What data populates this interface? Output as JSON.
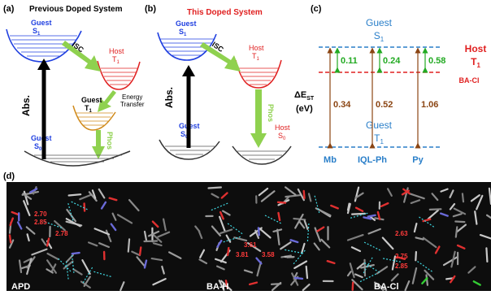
{
  "panel_a": {
    "label": "(a)",
    "title": "Previous Doped System",
    "guest_s1": {
      "line1": "Guest",
      "line2": "S",
      "sub": "1"
    },
    "host_t1": {
      "line1": "Host",
      "line2": "T",
      "sub": "1"
    },
    "guest_t1": {
      "line1": "Guest",
      "line2": "T",
      "sub": "1"
    },
    "guest_s0": {
      "line1": "Guest",
      "line2": "S",
      "sub": "0"
    },
    "isc": "ISC",
    "energy_transfer": {
      "line1": "Energy",
      "line2": "Transfer"
    },
    "abs": "Abs.",
    "phos": "Phos"
  },
  "panel_b": {
    "label": "(b)",
    "title": "This Doped System",
    "guest_s1": {
      "line1": "Guest",
      "line2": "S",
      "sub": "1"
    },
    "host_t1": {
      "line1": "Host",
      "line2": "T",
      "sub": "1"
    },
    "guest_s0": {
      "line1": "Guest",
      "line2": "S",
      "sub": "0"
    },
    "host_s0": {
      "line1": "Host",
      "line2": "S",
      "sub": "0"
    },
    "isc": "ISC",
    "abs": "Abs.",
    "phos": "Phos"
  },
  "panel_c": {
    "label": "(c)",
    "guest_s1": {
      "line1": "Guest",
      "line2": "S",
      "sub": "1"
    },
    "host_t1": {
      "line1": "Host",
      "line2": "T",
      "sub": "1"
    },
    "host_name": "BA-Cl",
    "guest_t1": {
      "line1": "Guest",
      "line2": "T",
      "sub": "1"
    },
    "delta_est": {
      "main": "ΔE",
      "sub": "ST",
      "unit": "(eV)"
    },
    "columns": [
      {
        "name": "Mb",
        "upper": "0.11",
        "lower": "0.34"
      },
      {
        "name": "IQL-Ph",
        "upper": "0.24",
        "lower": "0.52"
      },
      {
        "name": "Py",
        "upper": "0.58",
        "lower": "1.06"
      }
    ]
  },
  "panel_d": {
    "label": "(d)",
    "structures": [
      {
        "name": "APD",
        "distances": [
          "2.70",
          "2.85",
          "2.78"
        ]
      },
      {
        "name": "BA-H",
        "distances": [
          "3.61",
          "3.81",
          "3.58"
        ]
      },
      {
        "name": "BA-Cl",
        "distances": [
          "2.63",
          "2.75",
          "2.85"
        ]
      }
    ]
  },
  "colors": {
    "guest_blue": "#1f3fe0",
    "host_red": "#e02020",
    "guest_t1_orange": "#d08a1a",
    "arrow_green": "#8fd14f",
    "level_brown": "#8b4513",
    "text_blue": "#2a7fc9",
    "label_green": "#22aa22",
    "dark_bg": "#0d0d0d"
  }
}
